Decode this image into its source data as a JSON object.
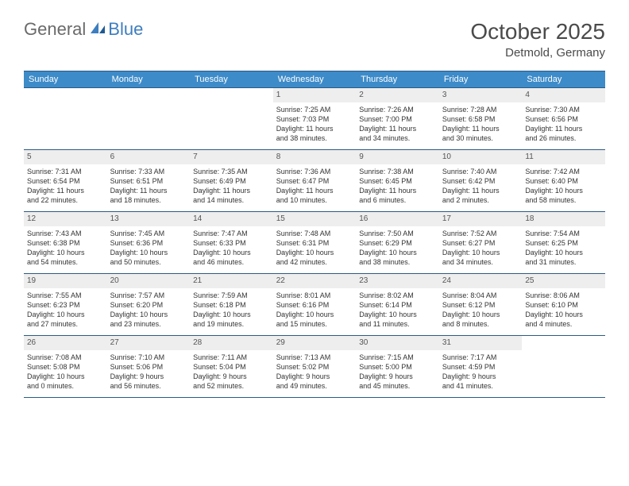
{
  "logo": {
    "text1": "General",
    "text2": "Blue"
  },
  "title": "October 2025",
  "location": "Detmold, Germany",
  "colors": {
    "header_bg": "#3d8bc9",
    "header_border": "#2b5a85",
    "daynum_bg": "#eeeeee",
    "text": "#333333",
    "logo_gray": "#6a6a6a",
    "logo_blue": "#3d7ebf"
  },
  "day_headers": [
    "Sunday",
    "Monday",
    "Tuesday",
    "Wednesday",
    "Thursday",
    "Friday",
    "Saturday"
  ],
  "weeks": [
    [
      null,
      null,
      null,
      {
        "n": "1",
        "sr": "Sunrise: 7:25 AM",
        "ss": "Sunset: 7:03 PM",
        "d1": "Daylight: 11 hours",
        "d2": "and 38 minutes."
      },
      {
        "n": "2",
        "sr": "Sunrise: 7:26 AM",
        "ss": "Sunset: 7:00 PM",
        "d1": "Daylight: 11 hours",
        "d2": "and 34 minutes."
      },
      {
        "n": "3",
        "sr": "Sunrise: 7:28 AM",
        "ss": "Sunset: 6:58 PM",
        "d1": "Daylight: 11 hours",
        "d2": "and 30 minutes."
      },
      {
        "n": "4",
        "sr": "Sunrise: 7:30 AM",
        "ss": "Sunset: 6:56 PM",
        "d1": "Daylight: 11 hours",
        "d2": "and 26 minutes."
      }
    ],
    [
      {
        "n": "5",
        "sr": "Sunrise: 7:31 AM",
        "ss": "Sunset: 6:54 PM",
        "d1": "Daylight: 11 hours",
        "d2": "and 22 minutes."
      },
      {
        "n": "6",
        "sr": "Sunrise: 7:33 AM",
        "ss": "Sunset: 6:51 PM",
        "d1": "Daylight: 11 hours",
        "d2": "and 18 minutes."
      },
      {
        "n": "7",
        "sr": "Sunrise: 7:35 AM",
        "ss": "Sunset: 6:49 PM",
        "d1": "Daylight: 11 hours",
        "d2": "and 14 minutes."
      },
      {
        "n": "8",
        "sr": "Sunrise: 7:36 AM",
        "ss": "Sunset: 6:47 PM",
        "d1": "Daylight: 11 hours",
        "d2": "and 10 minutes."
      },
      {
        "n": "9",
        "sr": "Sunrise: 7:38 AM",
        "ss": "Sunset: 6:45 PM",
        "d1": "Daylight: 11 hours",
        "d2": "and 6 minutes."
      },
      {
        "n": "10",
        "sr": "Sunrise: 7:40 AM",
        "ss": "Sunset: 6:42 PM",
        "d1": "Daylight: 11 hours",
        "d2": "and 2 minutes."
      },
      {
        "n": "11",
        "sr": "Sunrise: 7:42 AM",
        "ss": "Sunset: 6:40 PM",
        "d1": "Daylight: 10 hours",
        "d2": "and 58 minutes."
      }
    ],
    [
      {
        "n": "12",
        "sr": "Sunrise: 7:43 AM",
        "ss": "Sunset: 6:38 PM",
        "d1": "Daylight: 10 hours",
        "d2": "and 54 minutes."
      },
      {
        "n": "13",
        "sr": "Sunrise: 7:45 AM",
        "ss": "Sunset: 6:36 PM",
        "d1": "Daylight: 10 hours",
        "d2": "and 50 minutes."
      },
      {
        "n": "14",
        "sr": "Sunrise: 7:47 AM",
        "ss": "Sunset: 6:33 PM",
        "d1": "Daylight: 10 hours",
        "d2": "and 46 minutes."
      },
      {
        "n": "15",
        "sr": "Sunrise: 7:48 AM",
        "ss": "Sunset: 6:31 PM",
        "d1": "Daylight: 10 hours",
        "d2": "and 42 minutes."
      },
      {
        "n": "16",
        "sr": "Sunrise: 7:50 AM",
        "ss": "Sunset: 6:29 PM",
        "d1": "Daylight: 10 hours",
        "d2": "and 38 minutes."
      },
      {
        "n": "17",
        "sr": "Sunrise: 7:52 AM",
        "ss": "Sunset: 6:27 PM",
        "d1": "Daylight: 10 hours",
        "d2": "and 34 minutes."
      },
      {
        "n": "18",
        "sr": "Sunrise: 7:54 AM",
        "ss": "Sunset: 6:25 PM",
        "d1": "Daylight: 10 hours",
        "d2": "and 31 minutes."
      }
    ],
    [
      {
        "n": "19",
        "sr": "Sunrise: 7:55 AM",
        "ss": "Sunset: 6:23 PM",
        "d1": "Daylight: 10 hours",
        "d2": "and 27 minutes."
      },
      {
        "n": "20",
        "sr": "Sunrise: 7:57 AM",
        "ss": "Sunset: 6:20 PM",
        "d1": "Daylight: 10 hours",
        "d2": "and 23 minutes."
      },
      {
        "n": "21",
        "sr": "Sunrise: 7:59 AM",
        "ss": "Sunset: 6:18 PM",
        "d1": "Daylight: 10 hours",
        "d2": "and 19 minutes."
      },
      {
        "n": "22",
        "sr": "Sunrise: 8:01 AM",
        "ss": "Sunset: 6:16 PM",
        "d1": "Daylight: 10 hours",
        "d2": "and 15 minutes."
      },
      {
        "n": "23",
        "sr": "Sunrise: 8:02 AM",
        "ss": "Sunset: 6:14 PM",
        "d1": "Daylight: 10 hours",
        "d2": "and 11 minutes."
      },
      {
        "n": "24",
        "sr": "Sunrise: 8:04 AM",
        "ss": "Sunset: 6:12 PM",
        "d1": "Daylight: 10 hours",
        "d2": "and 8 minutes."
      },
      {
        "n": "25",
        "sr": "Sunrise: 8:06 AM",
        "ss": "Sunset: 6:10 PM",
        "d1": "Daylight: 10 hours",
        "d2": "and 4 minutes."
      }
    ],
    [
      {
        "n": "26",
        "sr": "Sunrise: 7:08 AM",
        "ss": "Sunset: 5:08 PM",
        "d1": "Daylight: 10 hours",
        "d2": "and 0 minutes."
      },
      {
        "n": "27",
        "sr": "Sunrise: 7:10 AM",
        "ss": "Sunset: 5:06 PM",
        "d1": "Daylight: 9 hours",
        "d2": "and 56 minutes."
      },
      {
        "n": "28",
        "sr": "Sunrise: 7:11 AM",
        "ss": "Sunset: 5:04 PM",
        "d1": "Daylight: 9 hours",
        "d2": "and 52 minutes."
      },
      {
        "n": "29",
        "sr": "Sunrise: 7:13 AM",
        "ss": "Sunset: 5:02 PM",
        "d1": "Daylight: 9 hours",
        "d2": "and 49 minutes."
      },
      {
        "n": "30",
        "sr": "Sunrise: 7:15 AM",
        "ss": "Sunset: 5:00 PM",
        "d1": "Daylight: 9 hours",
        "d2": "and 45 minutes."
      },
      {
        "n": "31",
        "sr": "Sunrise: 7:17 AM",
        "ss": "Sunset: 4:59 PM",
        "d1": "Daylight: 9 hours",
        "d2": "and 41 minutes."
      },
      null
    ]
  ]
}
